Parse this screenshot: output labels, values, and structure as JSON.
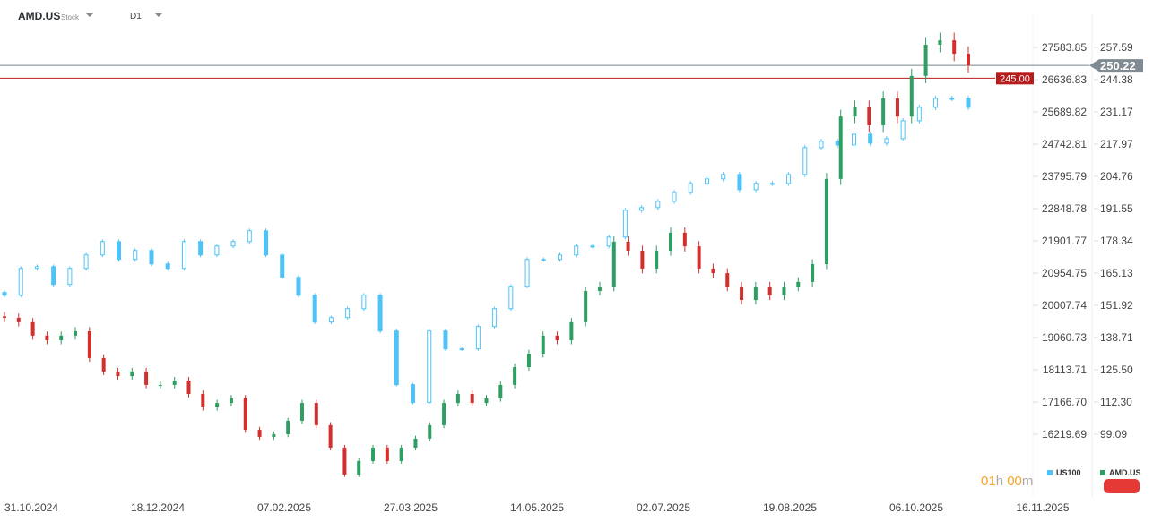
{
  "header": {
    "symbol": "AMD.US",
    "type": "Stock",
    "timeframe": "D1"
  },
  "timer": {
    "hours": "01",
    "h": "h",
    "minutes": "00",
    "m": "m"
  },
  "legend": [
    {
      "name": "US100",
      "color": "#4fc3f7"
    },
    {
      "name": "AMD.US",
      "color": "#2e9e62"
    }
  ],
  "price_tags": {
    "current": "250.22",
    "alert": "245.00"
  },
  "chart_data": {
    "type": "candlestick",
    "x_tick_labels": [
      "31.10.2024",
      "18.12.2024",
      "07.02.2025",
      "27.03.2025",
      "14.05.2025",
      "02.07.2025",
      "19.08.2025",
      "06.10.2025",
      "16.11.2025"
    ],
    "left_axis": {
      "series": "US100",
      "ticks": [
        "27583.85",
        "26636.83",
        "25689.82",
        "24742.81",
        "23795.79",
        "22848.78",
        "21901.77",
        "20954.75",
        "20007.74",
        "19060.73",
        "18113.71",
        "17166.70",
        "16219.69"
      ],
      "range": [
        16219.69,
        27583.85
      ]
    },
    "right_axis": {
      "series": "AMD.US",
      "ticks": [
        "257.59",
        "244.38",
        "231.17",
        "217.97",
        "204.76",
        "191.55",
        "178.34",
        "165.13",
        "151.92",
        "138.71",
        "125.50",
        "112.30",
        "99.09"
      ],
      "range": [
        99.09,
        257.59
      ]
    },
    "horizontal_lines": [
      {
        "label": "250.22",
        "value": 250.22,
        "color": "#78858b"
      },
      {
        "label": "245.00",
        "value": 245.0,
        "color": "#b71c1c"
      }
    ],
    "series": [
      {
        "name": "US100",
        "color": "#4fc3f7",
        "closes": [
          20304,
          21093,
          21145,
          20620,
          21093,
          21487,
          21881,
          21356,
          21618,
          21224,
          21093,
          21881,
          21487,
          21750,
          21881,
          22197,
          21487,
          20830,
          20304,
          19516,
          19647,
          19910,
          20304,
          19253,
          17676,
          17151,
          19253,
          18728,
          18728,
          19385,
          19910,
          20567,
          21356,
          21356,
          21487,
          21750,
          21750,
          22013,
          22801,
          22880,
          23064,
          23327,
          23589,
          23721,
          23852,
          23405,
          23589,
          23589,
          23852,
          24641,
          24825,
          24719,
          25035,
          24772,
          24903,
          25429,
          25823,
          26086,
          26086,
          25823
        ]
      },
      {
        "name": "AMD.US",
        "up_color": "#2e9e62",
        "down_color": "#d32f2f",
        "closes": [
          146.8,
          145.0,
          139.5,
          137.6,
          139.5,
          141.3,
          130.3,
          124.8,
          122.9,
          124.8,
          119.3,
          119.3,
          121.1,
          115.6,
          110.1,
          111.9,
          113.8,
          100.9,
          98.0,
          99.1,
          104.6,
          111.9,
          102.8,
          93.6,
          82.6,
          88.1,
          93.6,
          88.1,
          93.6,
          97.3,
          102.8,
          111.9,
          115.6,
          111.9,
          113.8,
          119.3,
          126.6,
          132.1,
          139.5,
          137.6,
          145.0,
          157.8,
          159.6,
          178.0,
          174.3,
          167.0,
          174.3,
          181.7,
          176.1,
          167.0,
          165.1,
          159.6,
          154.1,
          159.6,
          156.0,
          159.6,
          161.5,
          168.8,
          203.7,
          229.3,
          233.0,
          225.7,
          236.7,
          229.3,
          245.9,
          258.7,
          260.5,
          255.0,
          250.2
        ]
      }
    ]
  }
}
